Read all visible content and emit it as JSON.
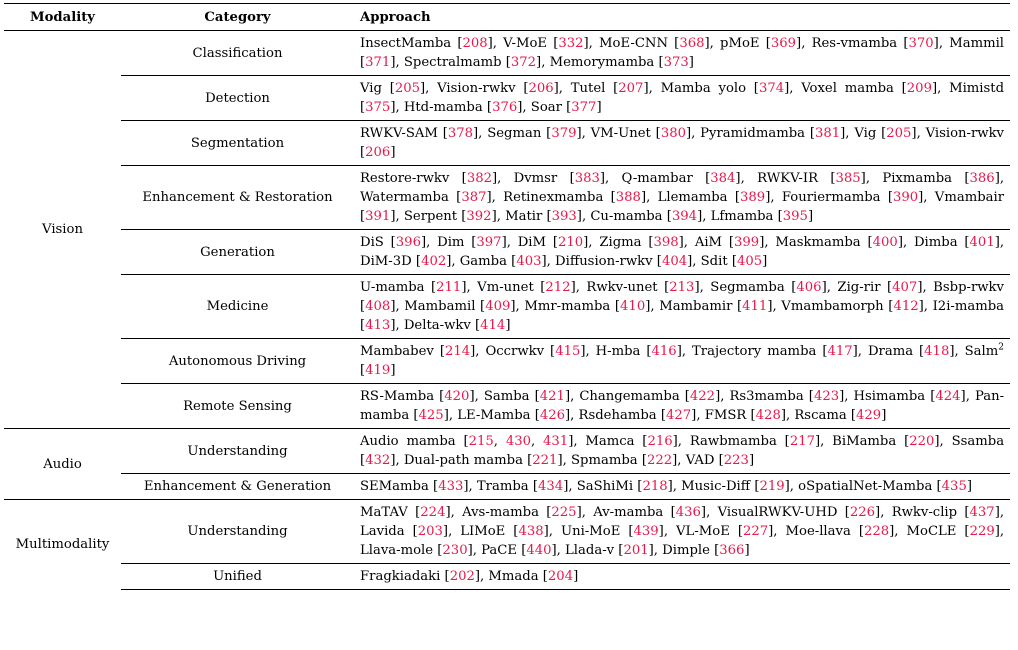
{
  "headers": [
    "Modality",
    "Category",
    "Approach"
  ],
  "groups": [
    {
      "modality": "Vision",
      "rows": [
        {
          "category": "Classification",
          "items": [
            [
              "InsectMamba",
              [
                "208"
              ]
            ],
            [
              "V-MoE",
              [
                "332"
              ]
            ],
            [
              "MoE-CNN",
              [
                "368"
              ]
            ],
            [
              "pMoE",
              [
                "369"
              ]
            ],
            [
              "Res-vmamba",
              [
                "370"
              ]
            ],
            [
              "Mammil",
              [
                "371"
              ]
            ],
            [
              "Spectralmamb",
              [
                "372"
              ]
            ],
            [
              "Memorymamba",
              [
                "373"
              ]
            ]
          ]
        },
        {
          "category": "Detection",
          "items": [
            [
              "Vig",
              [
                "205"
              ]
            ],
            [
              "Vision-rwkv",
              [
                "206"
              ]
            ],
            [
              "Tutel",
              [
                "207"
              ]
            ],
            [
              "Mamba yolo",
              [
                "374"
              ]
            ],
            [
              "Voxel mamba",
              [
                "209"
              ]
            ],
            [
              "Mimistd",
              [
                "375"
              ]
            ],
            [
              "Htd-mamba",
              [
                "376"
              ]
            ],
            [
              "Soar",
              [
                "377"
              ]
            ]
          ]
        },
        {
          "category": "Segmentation",
          "items": [
            [
              "RWKV-SAM",
              [
                "378"
              ]
            ],
            [
              "Segman",
              [
                "379"
              ]
            ],
            [
              "VM-Unet",
              [
                "380"
              ]
            ],
            [
              "Pyramidmamba",
              [
                "381"
              ]
            ],
            [
              "Vig",
              [
                "205"
              ]
            ],
            [
              "Vision-rwkv",
              [
                "206"
              ]
            ]
          ]
        },
        {
          "category": "Enhancement & Restoration",
          "items": [
            [
              "Restore-rwkv",
              [
                "382"
              ]
            ],
            [
              "Dvmsr",
              [
                "383"
              ]
            ],
            [
              "Q-mambar",
              [
                "384"
              ]
            ],
            [
              "RWKV-IR",
              [
                "385"
              ]
            ],
            [
              "Pixmamba",
              [
                "386"
              ]
            ],
            [
              "Watermamba",
              [
                "387"
              ]
            ],
            [
              "Retinexmamba",
              [
                "388"
              ]
            ],
            [
              "Llemamba",
              [
                "389"
              ]
            ],
            [
              "Fouriermamba",
              [
                "390"
              ]
            ],
            [
              "Vmambair",
              [
                "391"
              ]
            ],
            [
              "Serpent",
              [
                "392"
              ]
            ],
            [
              "Matir",
              [
                "393"
              ]
            ],
            [
              "Cu-mamba",
              [
                "394"
              ]
            ],
            [
              "Lfmamba",
              [
                "395"
              ]
            ]
          ]
        },
        {
          "category": "Generation",
          "items": [
            [
              "DiS",
              [
                "396"
              ]
            ],
            [
              "Dim",
              [
                "397"
              ]
            ],
            [
              "DiM",
              [
                "210"
              ]
            ],
            [
              "Zigma",
              [
                "398"
              ]
            ],
            [
              "AiM",
              [
                "399"
              ]
            ],
            [
              "Maskmamba",
              [
                "400"
              ]
            ],
            [
              "Dimba",
              [
                "401"
              ]
            ],
            [
              "DiM-3D",
              [
                "402"
              ]
            ],
            [
              "Gamba",
              [
                "403"
              ]
            ],
            [
              "Diffusion-rwkv",
              [
                "404"
              ]
            ],
            [
              "Sdit",
              [
                "405"
              ]
            ]
          ]
        },
        {
          "category": "Medicine",
          "items": [
            [
              "U-mamba",
              [
                "211"
              ]
            ],
            [
              "Vm-unet",
              [
                "212"
              ]
            ],
            [
              "Rwkv-unet",
              [
                "213"
              ]
            ],
            [
              "Segmamba",
              [
                "406"
              ]
            ],
            [
              "Zig-rir",
              [
                "407"
              ]
            ],
            [
              "Bsbp-rwkv",
              [
                "408"
              ]
            ],
            [
              "Mambamil",
              [
                "409"
              ]
            ],
            [
              "Mmr-mamba",
              [
                "410"
              ]
            ],
            [
              "Mambamir",
              [
                "411"
              ]
            ],
            [
              "Vmambamorph",
              [
                "412"
              ]
            ],
            [
              "I2i-mamba",
              [
                "413"
              ]
            ],
            [
              "Delta-wkv",
              [
                "414"
              ]
            ]
          ]
        },
        {
          "category": "Autonomous Driving",
          "items": [
            [
              "Mambabev",
              [
                "214"
              ]
            ],
            [
              "Occrwkv",
              [
                "415"
              ]
            ],
            [
              "H-mba",
              [
                "416"
              ]
            ],
            [
              "Trajectory mamba",
              [
                "417"
              ]
            ],
            [
              "Drama",
              [
                "418"
              ]
            ],
            [
              "Salm",
              [
                "419"
              ],
              "2"
            ]
          ]
        },
        {
          "category": "Remote Sensing",
          "items": [
            [
              "RS-Mamba",
              [
                "420"
              ]
            ],
            [
              "Samba",
              [
                "421"
              ]
            ],
            [
              "Changemamba",
              [
                "422"
              ]
            ],
            [
              "Rs3mamba",
              [
                "423"
              ]
            ],
            [
              "Hsimamba",
              [
                "424"
              ]
            ],
            [
              "Pan-mamba",
              [
                "425"
              ]
            ],
            [
              "LE-Mamba",
              [
                "426"
              ]
            ],
            [
              "Rsdehamba",
              [
                "427"
              ]
            ],
            [
              "FMSR",
              [
                "428"
              ]
            ],
            [
              "Rscama",
              [
                "429"
              ]
            ]
          ]
        }
      ]
    },
    {
      "modality": "Audio",
      "rows": [
        {
          "category": "Understanding",
          "items": [
            [
              "Audio mamba",
              [
                "215",
                "430",
                "431"
              ]
            ],
            [
              "Mamca",
              [
                "216"
              ]
            ],
            [
              "Rawbmamba",
              [
                "217"
              ]
            ],
            [
              "BiMamba",
              [
                "220"
              ]
            ],
            [
              "Ssamba",
              [
                "432"
              ]
            ],
            [
              "Dual-path mamba",
              [
                "221"
              ]
            ],
            [
              "Spmamba",
              [
                "222"
              ]
            ],
            [
              "VAD",
              [
                "223"
              ]
            ]
          ]
        },
        {
          "category": "Enhancement & Generation",
          "items": [
            [
              "SEMamba",
              [
                "433"
              ]
            ],
            [
              "Tramba",
              [
                "434"
              ]
            ],
            [
              "SaShiMi",
              [
                "218"
              ]
            ],
            [
              "Music-Diff",
              [
                "219"
              ]
            ],
            [
              "oSpatialNet-Mamba",
              [
                "435"
              ]
            ]
          ]
        }
      ]
    },
    {
      "modality": "Multimodality",
      "rows": [
        {
          "category": "Understanding",
          "items": [
            [
              "MaTAV",
              [
                "224"
              ]
            ],
            [
              "Avs-mamba",
              [
                "225"
              ]
            ],
            [
              "Av-mamba",
              [
                "436"
              ]
            ],
            [
              "VisualRWKV-UHD",
              [
                "226"
              ]
            ],
            [
              "Rwkv-clip",
              [
                "437"
              ]
            ],
            [
              "Lavida",
              [
                "203"
              ]
            ],
            [
              "LIMoE",
              [
                "438"
              ]
            ],
            [
              "Uni-MoE",
              [
                "439"
              ]
            ],
            [
              "VL-MoE",
              [
                "227"
              ]
            ],
            [
              "Moe-llava",
              [
                "228"
              ]
            ],
            [
              "MoCLE",
              [
                "229"
              ]
            ],
            [
              "Llava-mole",
              [
                "230"
              ]
            ],
            [
              "PaCE",
              [
                "440"
              ]
            ],
            [
              "Llada-v",
              [
                "201"
              ]
            ],
            [
              "Dimple",
              [
                "366"
              ]
            ]
          ]
        },
        {
          "category": "Unified",
          "items": [
            [
              "Fragkiadaki",
              [
                "202"
              ]
            ],
            [
              "Mmada",
              [
                "204"
              ]
            ]
          ]
        }
      ]
    }
  ],
  "colors": {
    "text": "#000000",
    "reference": "#e8174a",
    "rule": "#000000"
  }
}
